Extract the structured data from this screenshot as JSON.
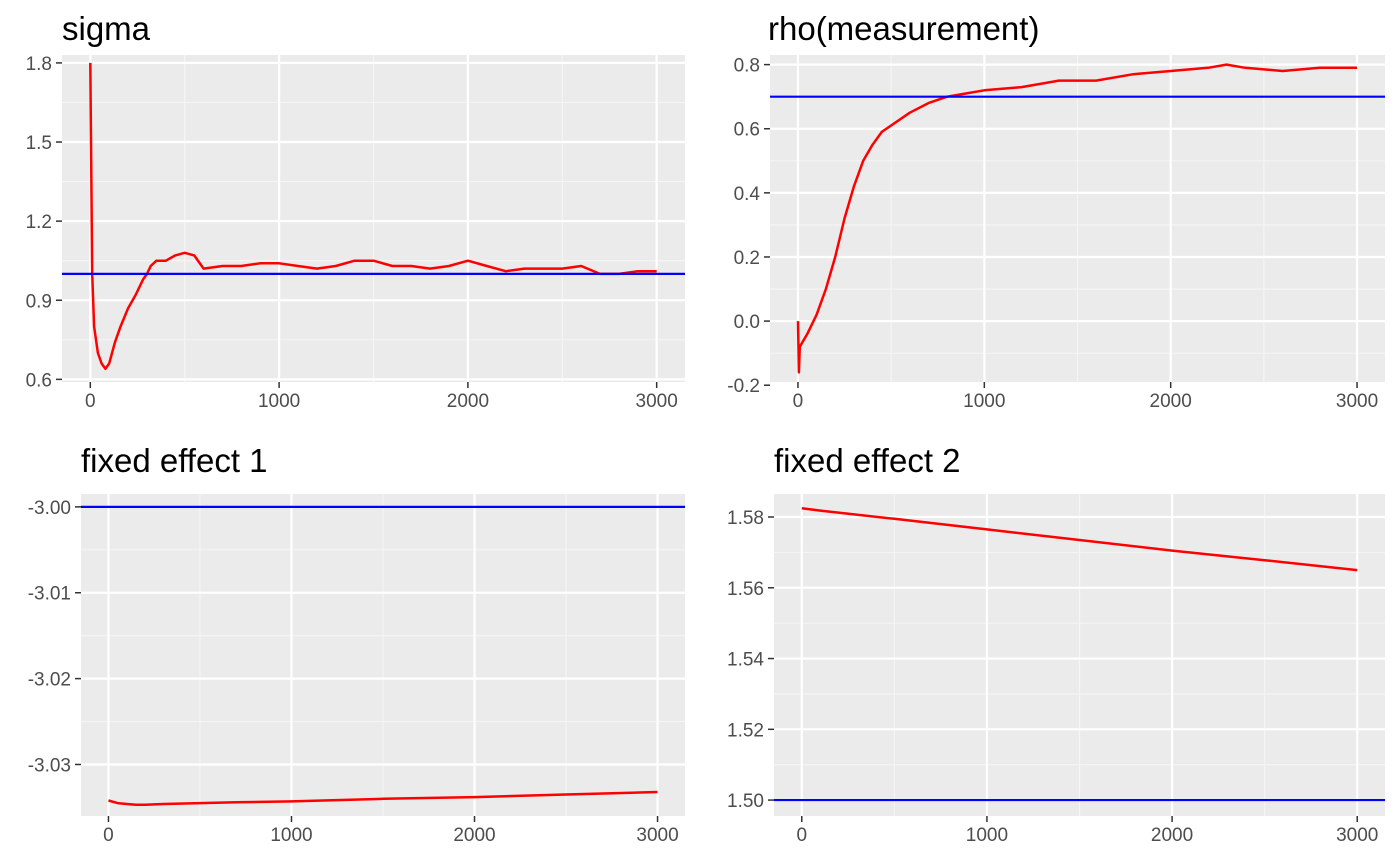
{
  "colors": {
    "panel_background": "#ebebeb",
    "grid_major": "#ffffff",
    "grid_minor": "#f5f5f5",
    "series": "#ff0000",
    "reference": "#0000ff",
    "tick_label": "#4d4d4d",
    "title": "#000000"
  },
  "chart_data": [
    {
      "type": "line",
      "title": "sigma",
      "xlabel": "",
      "ylabel": "",
      "xlim": [
        -150,
        3150
      ],
      "ylim": [
        0.59,
        1.83
      ],
      "x_ticks": [
        0,
        1000,
        2000,
        3000
      ],
      "x_tick_labels": [
        "0",
        "1000",
        "2000",
        "3000"
      ],
      "y_ticks": [
        0.6,
        0.9,
        1.2,
        1.5,
        1.8
      ],
      "y_tick_labels": [
        "0.6",
        "0.9",
        "1.2",
        "1.5",
        "1.8"
      ],
      "grid": true,
      "reference_line": 1.0,
      "series": [
        {
          "x": [
            0,
            10,
            20,
            40,
            60,
            80,
            100,
            130,
            160,
            200,
            240,
            280,
            300,
            320,
            350,
            400,
            450,
            500,
            550,
            600,
            700,
            800,
            900,
            1000,
            1100,
            1200,
            1300,
            1400,
            1500,
            1600,
            1700,
            1800,
            1900,
            2000,
            2100,
            2200,
            2300,
            2400,
            2500,
            2600,
            2700,
            2800,
            2900,
            3000
          ],
          "y": [
            1.8,
            1.0,
            0.8,
            0.7,
            0.66,
            0.64,
            0.66,
            0.74,
            0.8,
            0.87,
            0.92,
            0.98,
            1.0,
            1.03,
            1.05,
            1.05,
            1.07,
            1.08,
            1.07,
            1.02,
            1.03,
            1.03,
            1.04,
            1.04,
            1.03,
            1.02,
            1.03,
            1.05,
            1.05,
            1.03,
            1.03,
            1.02,
            1.03,
            1.05,
            1.03,
            1.01,
            1.02,
            1.02,
            1.02,
            1.03,
            1.0,
            1.0,
            1.01,
            1.01
          ]
        }
      ]
    },
    {
      "type": "line",
      "title": "rho(measurement)",
      "xlabel": "",
      "ylabel": "",
      "xlim": [
        -150,
        3150
      ],
      "ylim": [
        -0.19,
        0.83
      ],
      "x_ticks": [
        0,
        1000,
        2000,
        3000
      ],
      "x_tick_labels": [
        "0",
        "1000",
        "2000",
        "3000"
      ],
      "y_ticks": [
        -0.2,
        0.0,
        0.2,
        0.4,
        0.6,
        0.8
      ],
      "y_tick_labels": [
        "-0.2",
        "0.0",
        "0.2",
        "0.4",
        "0.6",
        "0.8"
      ],
      "grid": true,
      "reference_line": 0.7,
      "series": [
        {
          "x": [
            0,
            5,
            10,
            20,
            50,
            100,
            150,
            200,
            250,
            300,
            350,
            400,
            450,
            500,
            600,
            700,
            800,
            900,
            1000,
            1200,
            1400,
            1600,
            1800,
            2000,
            2200,
            2300,
            2400,
            2600,
            2800,
            3000
          ],
          "y": [
            0.0,
            -0.16,
            -0.08,
            -0.07,
            -0.04,
            0.02,
            0.1,
            0.2,
            0.32,
            0.42,
            0.5,
            0.55,
            0.59,
            0.61,
            0.65,
            0.68,
            0.7,
            0.71,
            0.72,
            0.73,
            0.75,
            0.75,
            0.77,
            0.78,
            0.79,
            0.8,
            0.79,
            0.78,
            0.79,
            0.79
          ]
        }
      ]
    },
    {
      "type": "line",
      "title": "fixed effect 1",
      "xlabel": "",
      "ylabel": "",
      "xlim": [
        -150,
        3150
      ],
      "ylim": [
        -3.036,
        -2.9985
      ],
      "x_ticks": [
        0,
        1000,
        2000,
        3000
      ],
      "x_tick_labels": [
        "0",
        "1000",
        "2000",
        "3000"
      ],
      "y_ticks": [
        -3.03,
        -3.02,
        -3.01,
        -3.0
      ],
      "y_tick_labels": [
        "-3.03",
        "-3.02",
        "-3.01",
        "-3.00"
      ],
      "grid": true,
      "reference_line": -3.0,
      "series": [
        {
          "x": [
            0,
            50,
            100,
            150,
            200,
            300,
            500,
            700,
            1000,
            1500,
            2000,
            2500,
            3000
          ],
          "y": [
            -3.0342,
            -3.0345,
            -3.0346,
            -3.0347,
            -3.0347,
            -3.0346,
            -3.0345,
            -3.0344,
            -3.0343,
            -3.034,
            -3.0338,
            -3.0335,
            -3.0332
          ]
        }
      ]
    },
    {
      "type": "line",
      "title": "fixed effect 2",
      "xlabel": "",
      "ylabel": "",
      "xlim": [
        -150,
        3150
      ],
      "ylim": [
        1.4955,
        1.5865
      ],
      "x_ticks": [
        0,
        1000,
        2000,
        3000
      ],
      "x_tick_labels": [
        "0",
        "1000",
        "2000",
        "3000"
      ],
      "y_ticks": [
        1.5,
        1.52,
        1.54,
        1.56,
        1.58
      ],
      "y_tick_labels": [
        "1.50",
        "1.52",
        "1.54",
        "1.56",
        "1.58"
      ],
      "grid": true,
      "reference_line": 1.5,
      "series": [
        {
          "x": [
            0,
            100,
            500,
            1000,
            1500,
            2000,
            2500,
            3000
          ],
          "y": [
            1.5825,
            1.5818,
            1.5795,
            1.5765,
            1.5735,
            1.5705,
            1.5678,
            1.565
          ]
        }
      ]
    }
  ]
}
